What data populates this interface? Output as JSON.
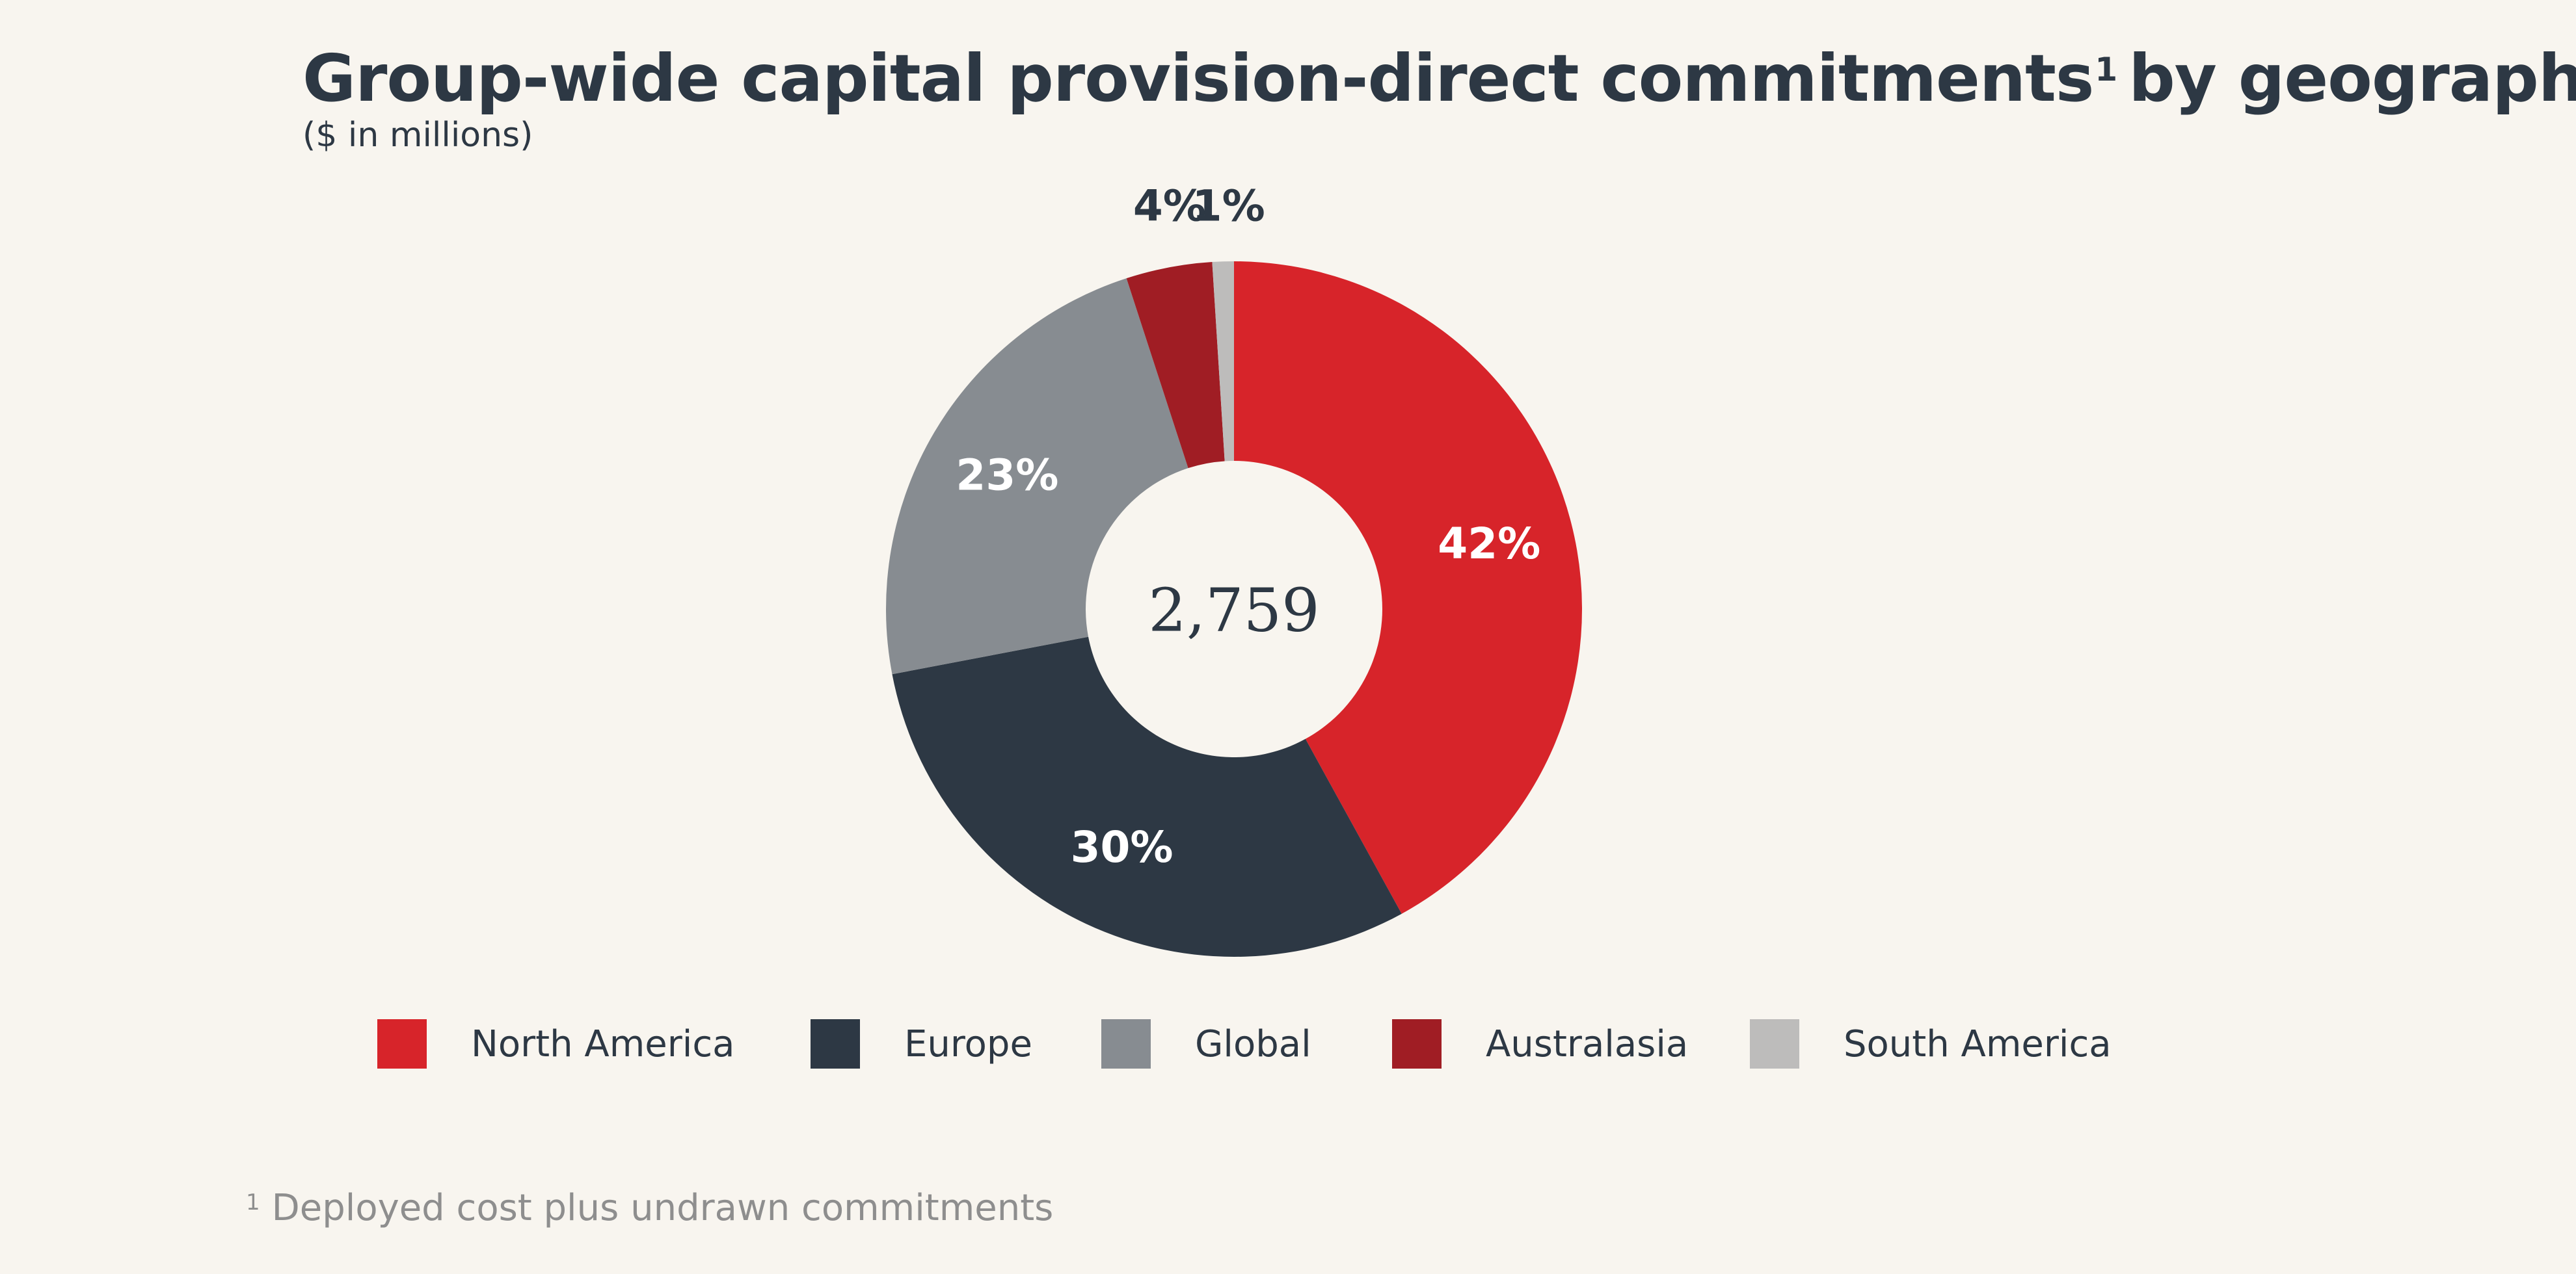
{
  "chart_data": {
    "type": "pie",
    "title": "Group-wide capital provision-direct commitments",
    "title_footnote_marker": "1",
    "title_suffix": "by geography",
    "subtitle": "($ in millions)",
    "center_total": "2,759",
    "categories": [
      "North America",
      "Europe",
      "Global",
      "Australasia",
      "South America"
    ],
    "values": [
      42,
      30,
      23,
      4,
      1
    ],
    "value_labels": [
      "42%",
      "30%",
      "23%",
      "4%",
      "1%"
    ],
    "colors": [
      "#d7242a",
      "#2d3844",
      "#878c91",
      "#a01d24",
      "#bdbcbb"
    ],
    "label_colors": [
      "#ffffff",
      "#ffffff",
      "#ffffff",
      "#2d3844",
      "#2d3844"
    ],
    "legend_position": "bottom",
    "donut": true
  },
  "footnote": {
    "marker": "1",
    "text": "Deployed cost plus undrawn commitments"
  }
}
